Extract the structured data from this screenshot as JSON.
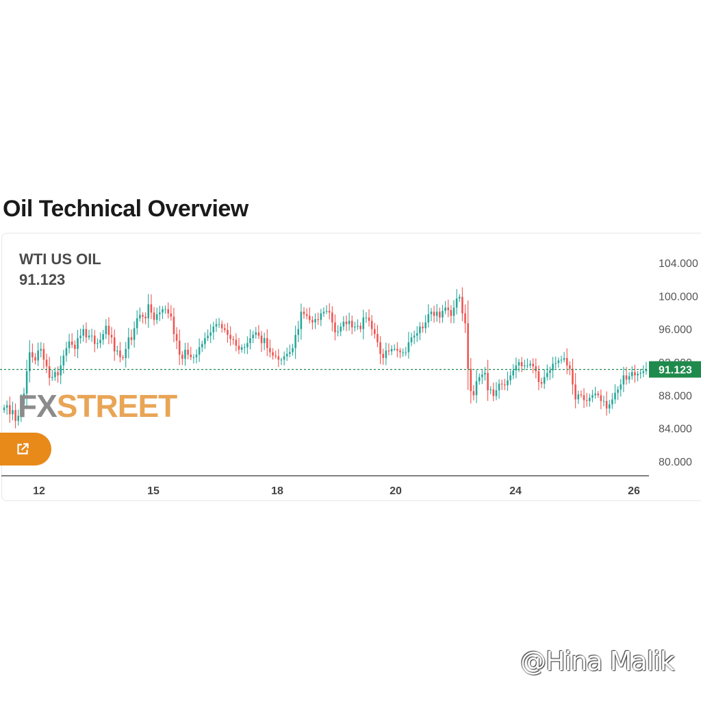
{
  "page": {
    "title": "Oil Technical Overview"
  },
  "widget": {
    "instrument": "WTI US OIL",
    "last_price": "91.123",
    "logo": {
      "part1": "FX",
      "part2": "STREET"
    },
    "open_button_icon": "external-link-icon"
  },
  "watermark": "@Hina Malik",
  "colors": {
    "up": "#26a69a",
    "down": "#ef5350",
    "last_price_tag": "#1e8a4c",
    "accent": "#e88a1a"
  },
  "chart_data": {
    "type": "candlestick",
    "title": "",
    "xlabel": "",
    "ylabel": "",
    "x_ticks": [
      "12",
      "15",
      "18",
      "20",
      "24",
      "26"
    ],
    "y_ticks": [
      "104.000",
      "100.000",
      "96.000",
      "92.000",
      "88.000",
      "84.000",
      "80.000"
    ],
    "ylim": [
      79.5,
      105
    ],
    "last_value": 91.123,
    "last_label": "91.123",
    "grid": false,
    "close_series": [
      86.5,
      86.8,
      85.7,
      86.2,
      84.9,
      85.5,
      86.9,
      88.2,
      90.9,
      93.2,
      92.6,
      92.2,
      93.4,
      93.6,
      92.3,
      91.5,
      90.1,
      90.2,
      90.8,
      90.4,
      91.6,
      92.8,
      93.7,
      94.5,
      94.1,
      93.6,
      94.9,
      95.2,
      96.0,
      95.0,
      95.2,
      95.2,
      94.2,
      94.3,
      94.7,
      95.4,
      96.4,
      95.3,
      95.0,
      93.3,
      93.4,
      92.6,
      92.5,
      93.6,
      95.0,
      94.7,
      96.1,
      97.3,
      97.7,
      97.5,
      97.3,
      99.0,
      98.0,
      97.1,
      97.8,
      98.0,
      98.4,
      98.4,
      97.9,
      97.5,
      95.4,
      94.6,
      92.9,
      92.4,
      93.5,
      92.9,
      92.6,
      92.6,
      92.9,
      93.8,
      94.2,
      94.9,
      95.2,
      95.6,
      96.3,
      96.6,
      96.6,
      96.1,
      95.9,
      95.3,
      94.8,
      94.7,
      94.0,
      93.5,
      93.8,
      93.8,
      94.3,
      94.9,
      95.3,
      95.6,
      95.2,
      94.3,
      94.9,
      93.7,
      93.2,
      92.8,
      92.7,
      92.3,
      92.3,
      92.7,
      93.0,
      93.2,
      93.7,
      95.3,
      96.0,
      98.1,
      97.8,
      97.6,
      97.1,
      96.8,
      97.2,
      97.1,
      97.9,
      98.1,
      98.2,
      98.0,
      96.8,
      95.6,
      95.7,
      96.3,
      96.9,
      96.6,
      97.0,
      96.2,
      96.3,
      96.4,
      96.0,
      97.4,
      97.4,
      97.0,
      96.0,
      95.4,
      94.4,
      93.0,
      92.5,
      93.4,
      93.3,
      93.6,
      93.6,
      93.4,
      93.2,
      93.2,
      93.2,
      94.4,
      95.0,
      95.2,
      95.5,
      96.3,
      96.1,
      96.8,
      97.8,
      98.1,
      97.6,
      98.1,
      97.4,
      98.2,
      98.6,
      98.3,
      97.6,
      98.6,
      99.7,
      99.9,
      97.9,
      96.7,
      91.2,
      88.5,
      88.0,
      89.7,
      90.2,
      90.5,
      90.7,
      88.6,
      88.7,
      87.9,
      88.6,
      89.4,
      89.3,
      89.2,
      89.8,
      90.4,
      91.0,
      91.6,
      92.0,
      91.5,
      91.6,
      91.6,
      91.8,
      91.5,
      90.9,
      89.6,
      89.4,
      90.2,
      90.7,
      91.0,
      91.8,
      91.9,
      92.2,
      92.3,
      92.5,
      91.6,
      91.2,
      89.3,
      87.5,
      88.1,
      88.0,
      87.4,
      87.3,
      87.7,
      88.0,
      88.2,
      88.0,
      87.3,
      87.3,
      86.4,
      86.9,
      87.5,
      88.3,
      88.7,
      89.3,
      90.4,
      89.9,
      90.3,
      90.8,
      90.4,
      90.6,
      90.7,
      90.9,
      91.1
    ]
  }
}
